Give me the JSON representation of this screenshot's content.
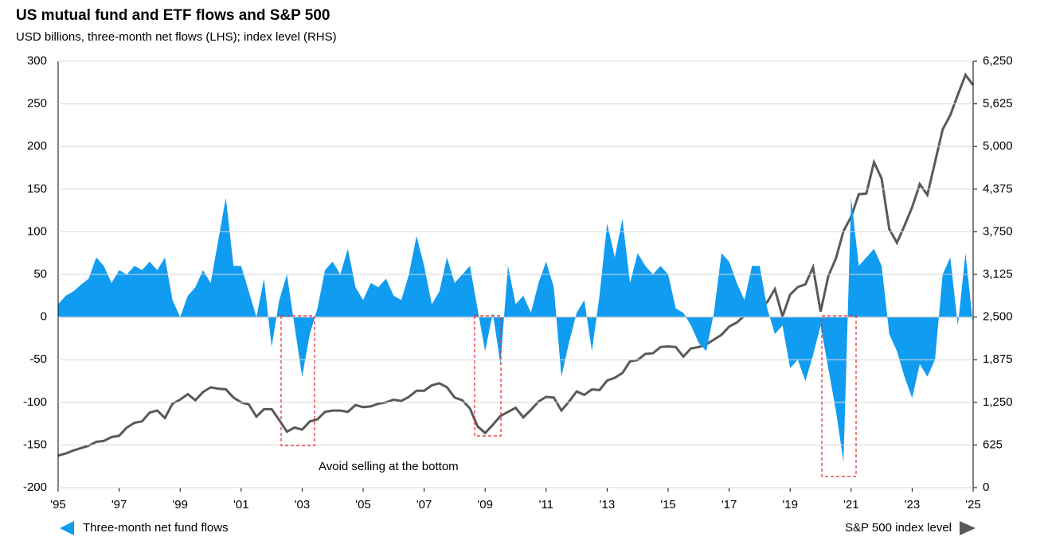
{
  "chart_data": {
    "type": "area-line",
    "title": "US mutual fund and ETF flows and S&P 500",
    "subtitle": "USD billions, three-month net flows (LHS); index level (RHS)",
    "annotation": "Avoid selling at the bottom",
    "xlim": [
      1995,
      2025
    ],
    "xticks": [
      {
        "value": 1995,
        "label": "'95"
      },
      {
        "value": 1997,
        "label": "'97"
      },
      {
        "value": 1999,
        "label": "'99"
      },
      {
        "value": 2001,
        "label": "'01"
      },
      {
        "value": 2003,
        "label": "'03"
      },
      {
        "value": 2005,
        "label": "'05"
      },
      {
        "value": 2007,
        "label": "'07"
      },
      {
        "value": 2009,
        "label": "'09"
      },
      {
        "value": 2011,
        "label": "'11"
      },
      {
        "value": 2013,
        "label": "'13"
      },
      {
        "value": 2015,
        "label": "'15"
      },
      {
        "value": 2017,
        "label": "'17"
      },
      {
        "value": 2019,
        "label": "'19"
      },
      {
        "value": 2021,
        "label": "'21"
      },
      {
        "value": 2023,
        "label": "'23"
      },
      {
        "value": 2025,
        "label": "'25"
      }
    ],
    "ylim": [
      -200,
      300
    ],
    "yticks": [
      -200,
      -150,
      -100,
      -50,
      0,
      50,
      100,
      150,
      200,
      250,
      300
    ],
    "y2lim": [
      0,
      6250
    ],
    "y2ticks": [
      0,
      625,
      {
        "value": 1250,
        "label": "1,250"
      },
      {
        "value": 1875,
        "label": "1,875"
      },
      {
        "value": 2500,
        "label": "2,500"
      },
      {
        "value": 3125,
        "label": "3,125"
      },
      {
        "value": 3750,
        "label": "3,750"
      },
      {
        "value": 4375,
        "label": "4,375"
      },
      {
        "value": 5000,
        "label": "5,000"
      },
      {
        "value": 5625,
        "label": "5,625"
      },
      {
        "value": 6250,
        "label": "6,250"
      }
    ],
    "grid": true,
    "x": [
      1995,
      1995.25,
      1995.5,
      1995.75,
      1996,
      1996.25,
      1996.5,
      1996.75,
      1997,
      1997.25,
      1997.5,
      1997.75,
      1998,
      1998.25,
      1998.5,
      1998.75,
      1999,
      1999.25,
      1999.5,
      1999.75,
      2000,
      2000.25,
      2000.5,
      2000.75,
      2001,
      2001.25,
      2001.5,
      2001.75,
      2002,
      2002.25,
      2002.5,
      2002.75,
      2003,
      2003.25,
      2003.5,
      2003.75,
      2004,
      2004.25,
      2004.5,
      2004.75,
      2005,
      2005.25,
      2005.5,
      2005.75,
      2006,
      2006.25,
      2006.5,
      2006.75,
      2007,
      2007.25,
      2007.5,
      2007.75,
      2008,
      2008.25,
      2008.5,
      2008.75,
      2009,
      2009.25,
      2009.5,
      2009.75,
      2010,
      2010.25,
      2010.5,
      2010.75,
      2011,
      2011.25,
      2011.5,
      2011.75,
      2012,
      2012.25,
      2012.5,
      2012.75,
      2013,
      2013.25,
      2013.5,
      2013.75,
      2014,
      2014.25,
      2014.5,
      2014.75,
      2015,
      2015.25,
      2015.5,
      2015.75,
      2016,
      2016.25,
      2016.5,
      2016.75,
      2017,
      2017.25,
      2017.5,
      2017.75,
      2018,
      2018.25,
      2018.5,
      2018.75,
      2019,
      2019.25,
      2019.5,
      2019.75,
      2020,
      2020.25,
      2020.5,
      2020.75,
      2021,
      2021.25,
      2021.5,
      2021.75,
      2022,
      2022.25,
      2022.5,
      2022.75,
      2023,
      2023.25,
      2023.5,
      2023.75,
      2024,
      2024.25,
      2024.5,
      2024.75,
      2025
    ],
    "series": [
      {
        "name": "Three-month net fund flows",
        "color": "#109cf1",
        "axis": "y",
        "values": [
          15,
          25,
          30,
          38,
          45,
          70,
          60,
          40,
          55,
          50,
          60,
          55,
          65,
          55,
          70,
          20,
          0,
          25,
          35,
          55,
          40,
          90,
          140,
          60,
          60,
          30,
          0,
          45,
          -35,
          20,
          50,
          -10,
          -70,
          -20,
          10,
          55,
          65,
          50,
          80,
          35,
          20,
          40,
          35,
          45,
          25,
          20,
          50,
          95,
          60,
          15,
          30,
          70,
          40,
          50,
          60,
          10,
          -40,
          5,
          -55,
          60,
          15,
          25,
          5,
          40,
          65,
          35,
          -70,
          -30,
          5,
          20,
          -40,
          25,
          110,
          70,
          115,
          40,
          75,
          60,
          50,
          60,
          50,
          10,
          5,
          -10,
          -30,
          -40,
          5,
          75,
          65,
          40,
          20,
          60,
          60,
          10,
          -20,
          -10,
          -60,
          -50,
          -75,
          -45,
          -10,
          -60,
          -110,
          -170,
          140,
          60,
          70,
          80,
          60,
          -20,
          -40,
          -70,
          -95,
          -55,
          -70,
          -50,
          50,
          70,
          -10,
          75,
          -10
        ]
      },
      {
        "name": "S&P 500 index level",
        "color": "#595959",
        "axis": "y2",
        "values": [
          470,
          500,
          545,
          580,
          615,
          670,
          685,
          740,
          760,
          880,
          950,
          970,
          1100,
          1130,
          1020,
          1230,
          1290,
          1370,
          1280,
          1400,
          1470,
          1450,
          1440,
          1320,
          1250,
          1220,
          1040,
          1150,
          1150,
          990,
          820,
          880,
          850,
          970,
          1000,
          1110,
          1130,
          1130,
          1110,
          1210,
          1180,
          1190,
          1230,
          1250,
          1290,
          1270,
          1330,
          1420,
          1420,
          1500,
          1530,
          1470,
          1320,
          1280,
          1160,
          900,
          800,
          920,
          1050,
          1110,
          1170,
          1030,
          1140,
          1260,
          1330,
          1320,
          1130,
          1260,
          1410,
          1360,
          1440,
          1430,
          1570,
          1610,
          1680,
          1850,
          1870,
          1960,
          1970,
          2060,
          2070,
          2060,
          1920,
          2040,
          2060,
          2100,
          2170,
          2240,
          2360,
          2420,
          2520,
          2670,
          2640,
          2720,
          2910,
          2510,
          2830,
          2940,
          2980,
          3230,
          2580,
          3100,
          3360,
          3760,
          3970,
          4300,
          4310,
          4770,
          4530,
          3790,
          3590,
          3840,
          4110,
          4450,
          4290,
          4770,
          5250,
          5460,
          5760,
          6050,
          5900
        ]
      }
    ]
  }
}
